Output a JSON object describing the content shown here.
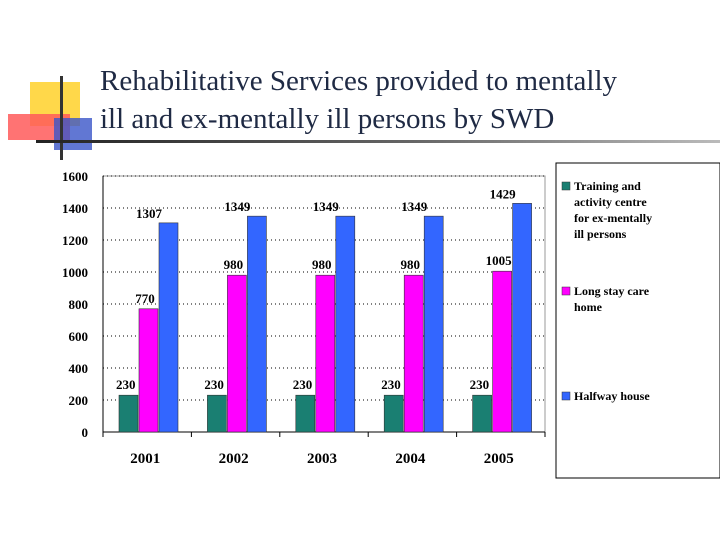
{
  "slide": {
    "title_line1": "Rehabilitative Services provided to mentally",
    "title_line2": "ill and ex-mentally ill persons by SWD"
  },
  "colors": {
    "series_teal": "#1a7f72",
    "series_magenta": "#ff00ff",
    "series_blue": "#3366ff"
  },
  "chart_data": {
    "type": "bar",
    "categories": [
      "2001",
      "2002",
      "2003",
      "2004",
      "2005"
    ],
    "series": [
      {
        "name": "Training and activity centre for ex-mentally ill persons",
        "legend_lines": [
          "Training and",
          "activity centre",
          "for ex-mentally",
          "ill persons"
        ],
        "values": [
          230,
          230,
          230,
          230,
          230
        ]
      },
      {
        "name": "Long stay care home",
        "legend_lines": [
          "Long stay care",
          "home"
        ],
        "values": [
          770,
          980,
          980,
          980,
          1005
        ]
      },
      {
        "name": "Halfway house",
        "legend_lines": [
          "Halfway house"
        ],
        "values": [
          1307,
          1349,
          1349,
          1349,
          1429
        ]
      }
    ],
    "y_ticks": [
      "0",
      "200",
      "400",
      "600",
      "800",
      "1000",
      "1200",
      "1400",
      "1600"
    ],
    "ylim": [
      0,
      1600
    ],
    "grid": "dotted horizontal",
    "legend_position": "right",
    "data_labels": true
  }
}
